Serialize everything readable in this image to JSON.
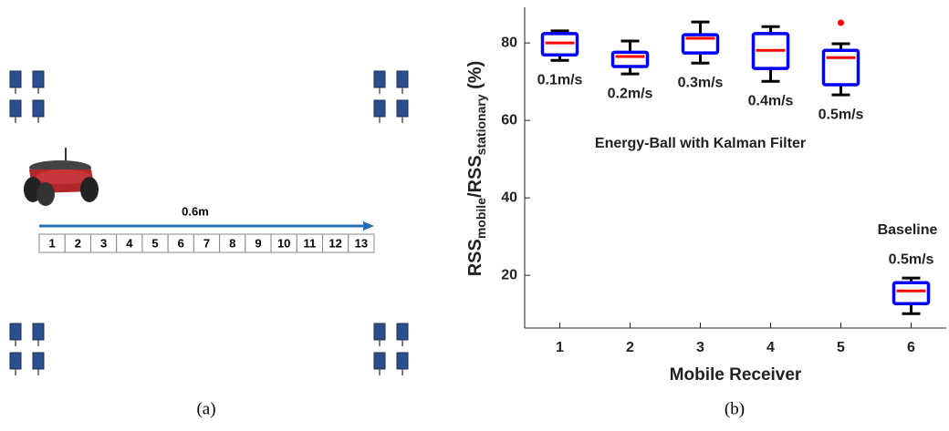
{
  "diagram": {
    "distance_label": "0.6m",
    "cells": [
      1,
      2,
      3,
      4,
      5,
      6,
      7,
      8,
      9,
      10,
      11,
      12,
      13
    ],
    "caption": "(a)"
  },
  "chart_data": {
    "type": "box",
    "x": [
      1,
      2,
      3,
      4,
      5,
      6
    ],
    "boxes": [
      {
        "whisker_low": 75.5,
        "q1": 76.9,
        "median": 80,
        "q3": 82.4,
        "whisker_high": 83.1
      },
      {
        "whisker_low": 72,
        "q1": 73.9,
        "median": 76.5,
        "q3": 77.6,
        "whisker_high": 80.5
      },
      {
        "whisker_low": 74.8,
        "q1": 77.4,
        "median": 81.2,
        "q3": 82.1,
        "whisker_high": 85.4
      },
      {
        "whisker_low": 70.1,
        "q1": 73.4,
        "median": 78.1,
        "q3": 82.4,
        "whisker_high": 84.2
      },
      {
        "whisker_low": 66.6,
        "q1": 69.2,
        "median": 76.2,
        "q3": 78.1,
        "whisker_high": 79.8
      },
      {
        "whisker_low": 10.1,
        "q1": 12.7,
        "median": 16,
        "q3": 18.1,
        "whisker_high": 19.3
      }
    ],
    "outliers": [
      [],
      [],
      [],
      [],
      [
        85.2
      ],
      []
    ],
    "box_labels": [
      "0.1m/s",
      "0.2m/s",
      "0.3m/s",
      "0.4m/s",
      "0.5m/s",
      "0.5m/s"
    ],
    "annotations": [
      "Energy-Ball with Kalman Filter",
      "Baseline"
    ],
    "box_color": "#0000ff",
    "median_color": "#ff0000",
    "whisker_color": "#000000",
    "outlier_color": "#ff0000",
    "xlim": [
      0.5,
      6.5
    ],
    "xticks": [
      1,
      2,
      3,
      4,
      5,
      6
    ],
    "ylim": [
      6.4,
      89.2
    ],
    "yticks": [
      20,
      40,
      60,
      80
    ],
    "x_label": "Mobile Receiver",
    "y_label": {
      "main1": "RSS",
      "sub1": "mobile",
      "main2": "/RSS",
      "sub2": "stationary",
      "unit": " (%)"
    },
    "caption": "(b)"
  }
}
